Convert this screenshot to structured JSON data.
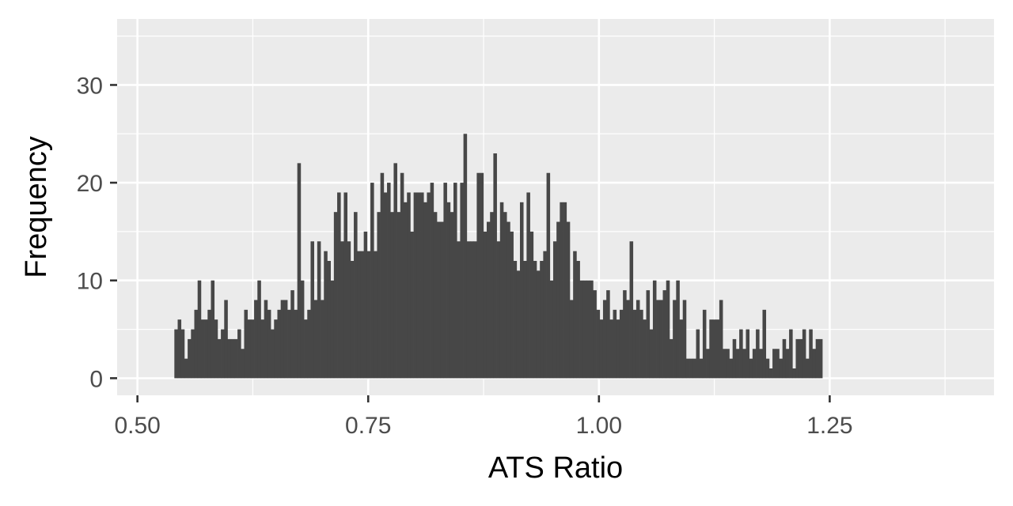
{
  "chart_data": {
    "type": "bar",
    "title": "",
    "xlabel": "ATS Ratio",
    "ylabel": "Frequency",
    "xlim": [
      0.478,
      1.428
    ],
    "ylim": [
      -1.75,
      36.75
    ],
    "x_ticks": [
      {
        "value": 0.5,
        "label": "0.50"
      },
      {
        "value": 0.75,
        "label": "0.75"
      },
      {
        "value": 1.0,
        "label": "1.00"
      },
      {
        "value": 1.25,
        "label": "1.25"
      }
    ],
    "y_ticks": [
      {
        "value": 0,
        "label": "0"
      },
      {
        "value": 10,
        "label": "10"
      },
      {
        "value": 20,
        "label": "20"
      },
      {
        "value": 30,
        "label": "30"
      }
    ],
    "grid": true,
    "bin_start": 0.54,
    "bin_width": 0.0036,
    "values": [
      5,
      6,
      5,
      2,
      4,
      5,
      7,
      10,
      6,
      6,
      7,
      10,
      6,
      4,
      5,
      8,
      4,
      4,
      4,
      5,
      3,
      7,
      6,
      6,
      8,
      10,
      6,
      8,
      7,
      5,
      6,
      7,
      8,
      8,
      7,
      9,
      7,
      22,
      10,
      6,
      7,
      14,
      8,
      14,
      8,
      13,
      12,
      10,
      17,
      19,
      14,
      19,
      14,
      12,
      17,
      13,
      13,
      15,
      13,
      20,
      13,
      17,
      21,
      19,
      20,
      17,
      22,
      17,
      21,
      18,
      19,
      15,
      19,
      19,
      19,
      18,
      19,
      20,
      17,
      16,
      16,
      20,
      18,
      17,
      20,
      14,
      20,
      25,
      14,
      14,
      14,
      21,
      21,
      15,
      16,
      17,
      23,
      14,
      18,
      17,
      16,
      15,
      12,
      11,
      18,
      12,
      19,
      15,
      12,
      11,
      12,
      13,
      21,
      10,
      14,
      16,
      18,
      18,
      16,
      8,
      13,
      12,
      10,
      10,
      10,
      10,
      9,
      7,
      6,
      8,
      9,
      6,
      7,
      6,
      7,
      9,
      8,
      14,
      7,
      8,
      7,
      6,
      9,
      5,
      10,
      8,
      8,
      9,
      10,
      4,
      8,
      10,
      6,
      8,
      2,
      2,
      2,
      5,
      2,
      7,
      3,
      6,
      6,
      6,
      8,
      3,
      3,
      2,
      4,
      3,
      5,
      3,
      5,
      2,
      3,
      5,
      3,
      7,
      2,
      1,
      3,
      3,
      2,
      4,
      3,
      5,
      1,
      4,
      4,
      5,
      2,
      5,
      3,
      4,
      4
    ]
  }
}
